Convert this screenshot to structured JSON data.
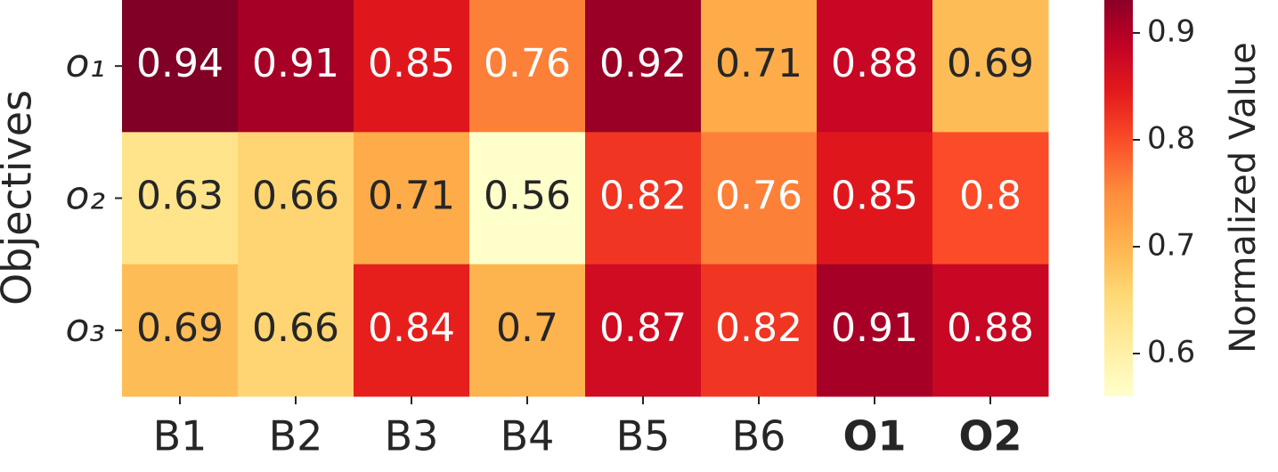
{
  "chart_data": {
    "type": "heatmap",
    "y_label": "Objectives",
    "colorbar_label": "Normalized Value",
    "categories": [
      "B1",
      "B2",
      "B3",
      "B4",
      "B5",
      "B6",
      "O1",
      "O2"
    ],
    "bold_categories": [
      false,
      false,
      false,
      false,
      false,
      false,
      true,
      true
    ],
    "rows": [
      "o₁",
      "o₂",
      "o₃"
    ],
    "values": [
      [
        0.94,
        0.91,
        0.85,
        0.76,
        0.92,
        0.71,
        0.88,
        0.69
      ],
      [
        0.63,
        0.66,
        0.71,
        0.56,
        0.82,
        0.76,
        0.85,
        0.8
      ],
      [
        0.69,
        0.66,
        0.84,
        0.7,
        0.87,
        0.82,
        0.91,
        0.88
      ]
    ],
    "colormap": [
      "#ffffcc",
      "#ffeda0",
      "#fed976",
      "#feb24c",
      "#fd8d3c",
      "#fc4e2a",
      "#e31a1c",
      "#bd0026",
      "#800026"
    ],
    "clim": [
      0.56,
      0.94
    ],
    "colorbar_ticks": [
      0.6,
      0.7,
      0.8,
      0.9
    ]
  }
}
